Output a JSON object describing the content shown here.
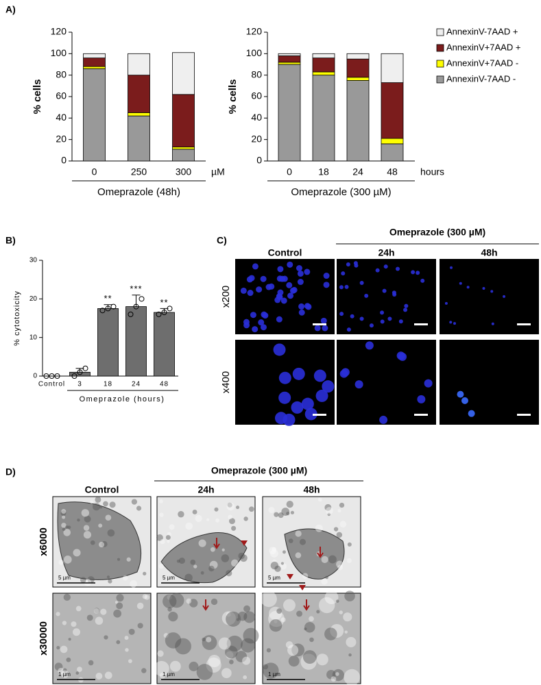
{
  "chart_data": [
    {
      "type": "stacked_bar",
      "panel_label": "A)",
      "ylabel": "% cells",
      "categories": [
        "0",
        "250",
        "300"
      ],
      "unit": "µM",
      "xlabel": "Omeprazole (48h)",
      "ylim": [
        0,
        120
      ],
      "yticks": [
        0,
        20,
        40,
        60,
        80,
        100,
        120
      ],
      "legend": false,
      "series": [
        {
          "color": "#999999",
          "values": [
            86,
            42,
            11
          ]
        },
        {
          "color": "#ffff00",
          "values": [
            2,
            3,
            2
          ]
        },
        {
          "color": "#7b1c1c",
          "values": [
            8,
            35,
            49
          ]
        },
        {
          "color": "#efefef",
          "values": [
            4,
            20,
            39
          ]
        }
      ]
    },
    {
      "type": "stacked_bar",
      "ylabel": "% cells",
      "categories": [
        "0",
        "18",
        "24",
        "48"
      ],
      "unit": "hours",
      "xlabel": "Omeprazole (300 µM)",
      "ylim": [
        0,
        120
      ],
      "yticks": [
        0,
        20,
        40,
        60,
        80,
        100,
        120
      ],
      "legend": true,
      "series": [
        {
          "name": "AnnexinV-7AAD -",
          "color": "#999999",
          "values": [
            90,
            80,
            75,
            16
          ]
        },
        {
          "name": "AnnexinV+7AAD -",
          "color": "#ffff00",
          "values": [
            2,
            3,
            3,
            5
          ]
        },
        {
          "name": "AnnexinV+7AAD +",
          "color": "#7b1c1c",
          "values": [
            6,
            13,
            17,
            52
          ]
        },
        {
          "name": "AnnexinV-7AAD +",
          "color": "#efefef",
          "values": [
            2,
            4,
            5,
            27
          ]
        }
      ]
    },
    {
      "type": "bar_dots",
      "panel_label": "B)",
      "ylabel": "% cytotoxicity",
      "categories": [
        "Control",
        "3",
        "18",
        "24",
        "48"
      ],
      "xlabel": "Omeprazole (hours)",
      "ylim": [
        0,
        30
      ],
      "yticks": [
        0,
        10,
        20,
        30
      ],
      "color": "#6e6e6e",
      "values": [
        0,
        1,
        17.5,
        18,
        16.5
      ],
      "errors": [
        0,
        1,
        1,
        3,
        1
      ],
      "points": [
        [
          0,
          0,
          0
        ],
        [
          0,
          1,
          2
        ],
        [
          17,
          17.5,
          18
        ],
        [
          16,
          18,
          20
        ],
        [
          16,
          16.5,
          17.5
        ]
      ],
      "significance": [
        null,
        null,
        "**",
        "***",
        "**"
      ]
    }
  ],
  "panel_c": {
    "label": "C)",
    "group_label": "Omeprazole (300 µM)",
    "columns": [
      "Control",
      "24h",
      "48h"
    ],
    "rows": [
      "x200",
      "x400"
    ]
  },
  "panel_d": {
    "label": "D)",
    "group_label": "Omeprazole (300 µM)",
    "columns": [
      "Control",
      "24h",
      "48h"
    ],
    "rows": [
      "x6000",
      "x30000"
    ],
    "scale_bars": [
      [
        "5 µm",
        "5 µm",
        "5 µm"
      ],
      [
        "1 µm",
        "1 µm",
        "1 µm"
      ]
    ]
  }
}
